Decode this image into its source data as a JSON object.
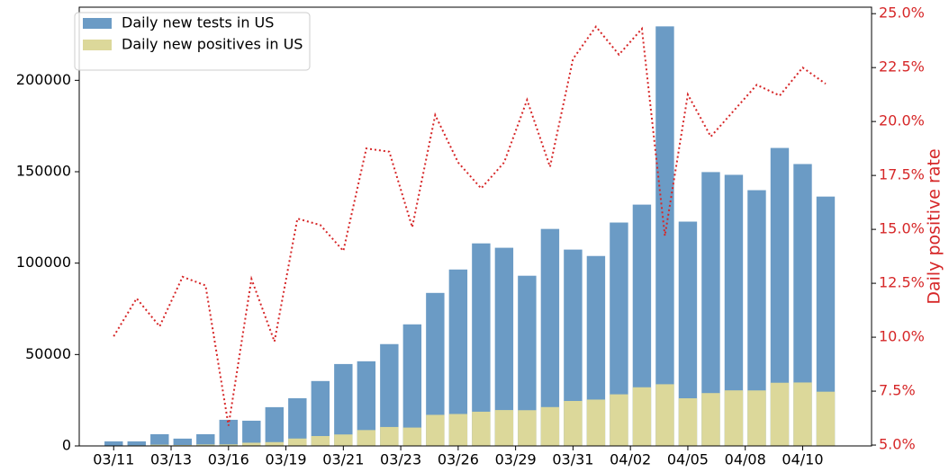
{
  "chart_data": {
    "type": "bar",
    "categories": [
      null,
      null,
      null,
      null,
      null,
      null,
      null,
      null,
      null,
      null,
      null,
      null,
      null,
      null,
      null,
      null,
      null,
      null,
      null,
      null,
      null,
      null,
      null,
      null,
      null,
      null,
      null,
      null,
      null,
      null,
      null,
      null
    ],
    "series": [
      {
        "name": "Daily new tests in US",
        "color": "#6b9bc5",
        "values": [
          2500,
          2500,
          6400,
          4000,
          6400,
          14300,
          13800,
          21200,
          26100,
          35500,
          44800,
          46300,
          55700,
          66500,
          83700,
          96500,
          110800,
          108400,
          93100,
          118700,
          107400,
          103900,
          122200,
          132000,
          229500,
          122700,
          149800,
          148300,
          139900,
          163000,
          154200,
          136400
        ]
      },
      {
        "name": "Daily new positives in US",
        "color": "#dcd89a",
        "values": [
          250,
          300,
          670,
          510,
          790,
          840,
          1750,
          2080,
          4050,
          5400,
          6270,
          8680,
          10360,
          10040,
          17000,
          17470,
          18720,
          19620,
          19550,
          21250,
          24600,
          25350,
          28230,
          32080,
          33740,
          26070,
          28910,
          30400,
          30360,
          34560,
          34700,
          29670
        ]
      },
      {
        "type": "line",
        "axis": "y2",
        "color": "#d62728",
        "values": [
          10.04,
          11.8,
          10.5,
          12.8,
          12.4,
          5.9,
          12.7,
          9.8,
          15.5,
          15.2,
          14.0,
          18.75,
          18.6,
          15.1,
          20.3,
          18.1,
          16.9,
          18.1,
          21.0,
          17.9,
          22.9,
          24.4,
          23.1,
          24.3,
          14.7,
          21.25,
          19.3,
          20.5,
          21.7,
          21.2,
          22.5,
          21.75
        ]
      }
    ],
    "xlim": [
      -1.5,
      33
    ],
    "xticks": [
      {
        "value": 0,
        "label": "03/11"
      },
      {
        "value": 2.5,
        "label": "03/13"
      },
      {
        "value": 5,
        "label": "03/16"
      },
      {
        "value": 7.5,
        "label": "03/19"
      },
      {
        "value": 10,
        "label": "03/21"
      },
      {
        "value": 12.5,
        "label": "03/23"
      },
      {
        "value": 15,
        "label": "03/26"
      },
      {
        "value": 17.5,
        "label": "03/29"
      },
      {
        "value": 20,
        "label": "03/31"
      },
      {
        "value": 22.5,
        "label": "04/02"
      },
      {
        "value": 25,
        "label": "04/05"
      },
      {
        "value": 27.5,
        "label": "04/08"
      },
      {
        "value": 30,
        "label": "04/10"
      }
    ],
    "ylim": [
      0,
      240000
    ],
    "yticks": [
      0,
      50000,
      100000,
      150000,
      200000
    ],
    "y2lim": [
      4.96,
      25.3
    ],
    "y2ticks": [
      {
        "value": 5,
        "label": "5.0%"
      },
      {
        "value": 7.5,
        "label": "7.5%"
      },
      {
        "value": 10,
        "label": "10.0%"
      },
      {
        "value": 12.5,
        "label": "12.5%"
      },
      {
        "value": 15,
        "label": "15.0%"
      },
      {
        "value": 17.5,
        "label": "17.5%"
      },
      {
        "value": 20,
        "label": "20.0%"
      },
      {
        "value": 22.5,
        "label": "22.5%"
      },
      {
        "value": 25,
        "label": "25.0%"
      }
    ],
    "y2label": "Daily positive rate",
    "y2color": "#d62728",
    "legend": "upper left"
  }
}
